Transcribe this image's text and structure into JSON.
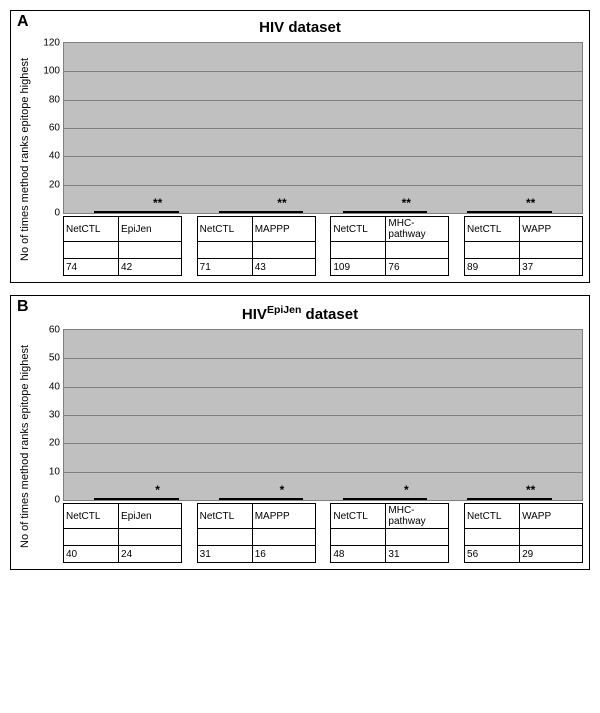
{
  "panels": [
    {
      "letter": "A",
      "title": "HIV dataset",
      "ylabel": "No of times method ranks epitope highest",
      "ymax": 120,
      "ytick_step": 20,
      "plot_bg": "#c0c0c0",
      "grid_color": "#808080",
      "pairs": [
        {
          "a": {
            "label": "NetCTL",
            "value": 74,
            "color": "#00ff00",
            "sig": ""
          },
          "b": {
            "label": "EpiJen",
            "value": 42,
            "color": "#ffff00",
            "sig": "**"
          }
        },
        {
          "a": {
            "label": "NetCTL",
            "value": 71,
            "color": "#00ff00",
            "sig": ""
          },
          "b": {
            "label": "MAPPP",
            "value": 43,
            "color": "#ff9900",
            "sig": "**"
          }
        },
        {
          "a": {
            "label": "NetCTL",
            "value": 109,
            "color": "#00ff00",
            "sig": ""
          },
          "b": {
            "label": "MHC-pathway",
            "value": 76,
            "color": "#ff0000",
            "sig": "**"
          }
        },
        {
          "a": {
            "label": "NetCTL",
            "value": 89,
            "color": "#00ff00",
            "sig": ""
          },
          "b": {
            "label": "WAPP",
            "value": 37,
            "color": "#0066ff",
            "sig": "**"
          }
        }
      ]
    },
    {
      "letter": "B",
      "title_html": "HIV<span class=\"sup\">EpiJen</span> dataset",
      "title": "HIV EpiJen dataset",
      "ylabel": "No of times method ranks epitope highest",
      "ymax": 60,
      "ytick_step": 10,
      "plot_bg": "#c0c0c0",
      "grid_color": "#808080",
      "pairs": [
        {
          "a": {
            "label": "NetCTL",
            "value": 40,
            "color": "#00ff00",
            "sig": ""
          },
          "b": {
            "label": "EpiJen",
            "value": 24,
            "color": "#ffff00",
            "sig": "*"
          }
        },
        {
          "a": {
            "label": "NetCTL",
            "value": 31,
            "color": "#00ff00",
            "sig": ""
          },
          "b": {
            "label": "MAPPP",
            "value": 16,
            "color": "#ff9900",
            "sig": "*"
          }
        },
        {
          "a": {
            "label": "NetCTL",
            "value": 48,
            "color": "#00ff00",
            "sig": ""
          },
          "b": {
            "label": "MHC-pathway",
            "value": 31,
            "color": "#ff0000",
            "sig": "*"
          }
        },
        {
          "a": {
            "label": "NetCTL",
            "value": 56,
            "color": "#00ff00",
            "sig": ""
          },
          "b": {
            "label": "WAPP",
            "value": 29,
            "color": "#0066ff",
            "sig": "**"
          }
        }
      ]
    }
  ]
}
